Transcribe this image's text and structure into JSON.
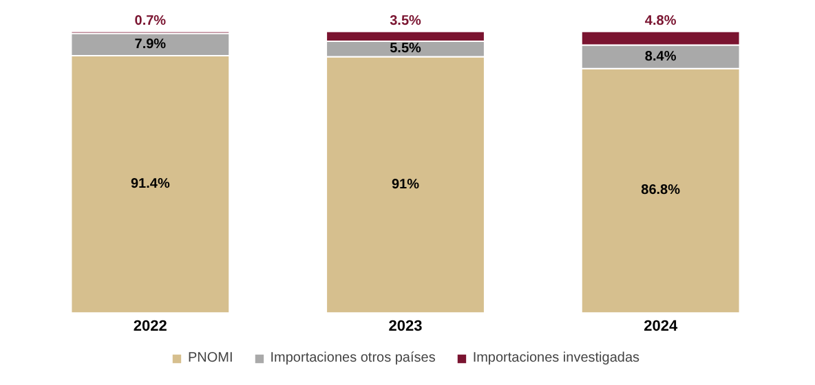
{
  "chart_data": {
    "type": "bar",
    "stacked": true,
    "categories": [
      "2022",
      "2023",
      "2024"
    ],
    "series": [
      {
        "name": "PNOMI",
        "color": "#d6bf8e",
        "values": [
          91.4,
          91,
          86.8
        ],
        "value_labels": [
          "91.4%",
          "91%",
          "86.8%"
        ]
      },
      {
        "name": "Importaciones otros países",
        "color": "#a9a9a9",
        "values": [
          7.9,
          5.5,
          8.4
        ],
        "value_labels": [
          "7.9%",
          "5.5%",
          "8.4%"
        ]
      },
      {
        "name": "Importaciones investigadas",
        "color": "#7a1430",
        "values": [
          0.7,
          3.5,
          4.8
        ],
        "value_labels": [
          "0.7%",
          "3.5%",
          "4.8%"
        ]
      }
    ],
    "tick_labels": "x",
    "grid": false,
    "legend": "bottom"
  }
}
